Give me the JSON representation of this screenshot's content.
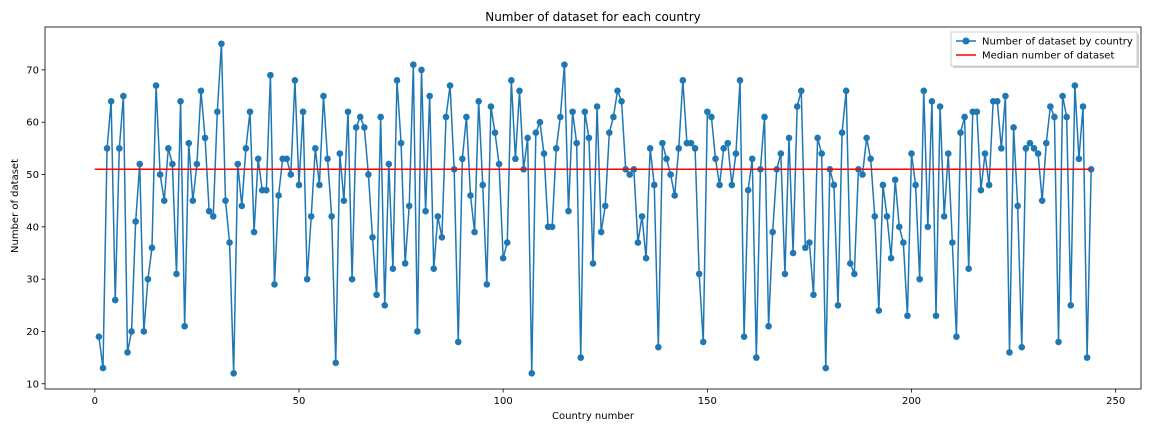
{
  "chart_data": {
    "type": "line",
    "title": "Number of dataset for each country",
    "xlabel": "Country number",
    "ylabel": "Number of dataset",
    "xlim": [
      -12.2,
      256.2
    ],
    "ylim": [
      9.0,
      78.2
    ],
    "xticks": [
      0,
      50,
      100,
      150,
      200,
      250
    ],
    "yticks": [
      10,
      20,
      30,
      40,
      50,
      60,
      70
    ],
    "grid": false,
    "legend_position": "top-right",
    "series": [
      {
        "name": "Number of dataset by country",
        "color": "#1f77b4",
        "marker": "circle",
        "x": [
          1,
          2,
          3,
          4,
          5,
          6,
          7,
          8,
          9,
          10,
          11,
          12,
          13,
          14,
          15,
          16,
          17,
          18,
          19,
          20,
          21,
          22,
          23,
          24,
          25,
          26,
          27,
          28,
          29,
          30,
          31,
          32,
          33,
          34,
          35,
          36,
          37,
          38,
          39,
          40,
          41,
          42,
          43,
          44,
          45,
          46,
          47,
          48,
          49,
          50,
          51,
          52,
          53,
          54,
          55,
          56,
          57,
          58,
          59,
          60,
          61,
          62,
          63,
          64,
          65,
          66,
          67,
          68,
          69,
          70,
          71,
          72,
          73,
          74,
          75,
          76,
          77,
          78,
          79,
          80,
          81,
          82,
          83,
          84,
          85,
          86,
          87,
          88,
          89,
          90,
          91,
          92,
          93,
          94,
          95,
          96,
          97,
          98,
          99,
          100,
          101,
          102,
          103,
          104,
          105,
          106,
          107,
          108,
          109,
          110,
          111,
          112,
          113,
          114,
          115,
          116,
          117,
          118,
          119,
          120,
          121,
          122,
          123,
          124,
          125,
          126,
          127,
          128,
          129,
          130,
          131,
          132,
          133,
          134,
          135,
          136,
          137,
          138,
          139,
          140,
          141,
          142,
          143,
          144,
          145,
          146,
          147,
          148,
          149,
          150,
          151,
          152,
          153,
          154,
          155,
          156,
          157,
          158,
          159,
          160,
          161,
          162,
          163,
          164,
          165,
          166,
          167,
          168,
          169,
          170,
          171,
          172,
          173,
          174,
          175,
          176,
          177,
          178,
          179,
          180,
          181,
          182,
          183,
          184,
          185,
          186,
          187,
          188,
          189,
          190,
          191,
          192,
          193,
          194,
          195,
          196,
          197,
          198,
          199,
          200,
          201,
          202,
          203,
          204,
          205,
          206,
          207,
          208,
          209,
          210,
          211,
          212,
          213,
          214,
          215,
          216,
          217,
          218,
          219,
          220,
          221,
          222,
          223,
          224,
          225,
          226,
          227,
          228,
          229,
          230,
          231,
          232,
          233,
          234,
          235,
          236,
          237,
          238,
          239,
          240,
          241,
          242,
          243,
          244
        ],
        "values": [
          19,
          13,
          55,
          64,
          26,
          55,
          65,
          16,
          20,
          41,
          52,
          20,
          30,
          36,
          67,
          50,
          45,
          55,
          52,
          31,
          64,
          21,
          56,
          45,
          52,
          66,
          57,
          43,
          42,
          62,
          75,
          45,
          37,
          12,
          52,
          44,
          55,
          62,
          39,
          53,
          47,
          47,
          69,
          29,
          46,
          53,
          53,
          50,
          68,
          48,
          62,
          30,
          42,
          55,
          48,
          65,
          53,
          42,
          14,
          54,
          45,
          62,
          30,
          59,
          61,
          59,
          50,
          38,
          27,
          61,
          25,
          52,
          32,
          68,
          56,
          33,
          44,
          71,
          20,
          70,
          43,
          65,
          32,
          42,
          38,
          61,
          67,
          51,
          18,
          53,
          61,
          46,
          39,
          64,
          48,
          29,
          63,
          58,
          52,
          34,
          37,
          68,
          53,
          66,
          51,
          57,
          12,
          58,
          60,
          54,
          40,
          40,
          55,
          61,
          71,
          43,
          62,
          56,
          15,
          62,
          57,
          33,
          63,
          39,
          44,
          58,
          61,
          66,
          64,
          51,
          50,
          51,
          37,
          42,
          34,
          55,
          48,
          17,
          56,
          53,
          50,
          46,
          55,
          68,
          56,
          56,
          55,
          31,
          18,
          62,
          61,
          53,
          48,
          55,
          56,
          48,
          54,
          68,
          19,
          47,
          53,
          15,
          51,
          61,
          21,
          39,
          51,
          54,
          31,
          57,
          35,
          63,
          66,
          36,
          37,
          27,
          57,
          54,
          13,
          51,
          48,
          25,
          58,
          66,
          33,
          31,
          51,
          50,
          57,
          53,
          42,
          24,
          48,
          42,
          34,
          49,
          40,
          37,
          23,
          54,
          48,
          30,
          66,
          40,
          64,
          23,
          63,
          42,
          54,
          37,
          19,
          58,
          61,
          32,
          62,
          62,
          47,
          54,
          48,
          64,
          64,
          55,
          65,
          16,
          59,
          44,
          17,
          55,
          56,
          55,
          54,
          45,
          56,
          63,
          61,
          18,
          65,
          61,
          25,
          67,
          53,
          63,
          15,
          51
        ]
      },
      {
        "name": "Median number of dataset",
        "color": "#ff0000",
        "marker": "none",
        "x": [
          0,
          244
        ],
        "values": [
          51,
          51
        ]
      }
    ]
  }
}
